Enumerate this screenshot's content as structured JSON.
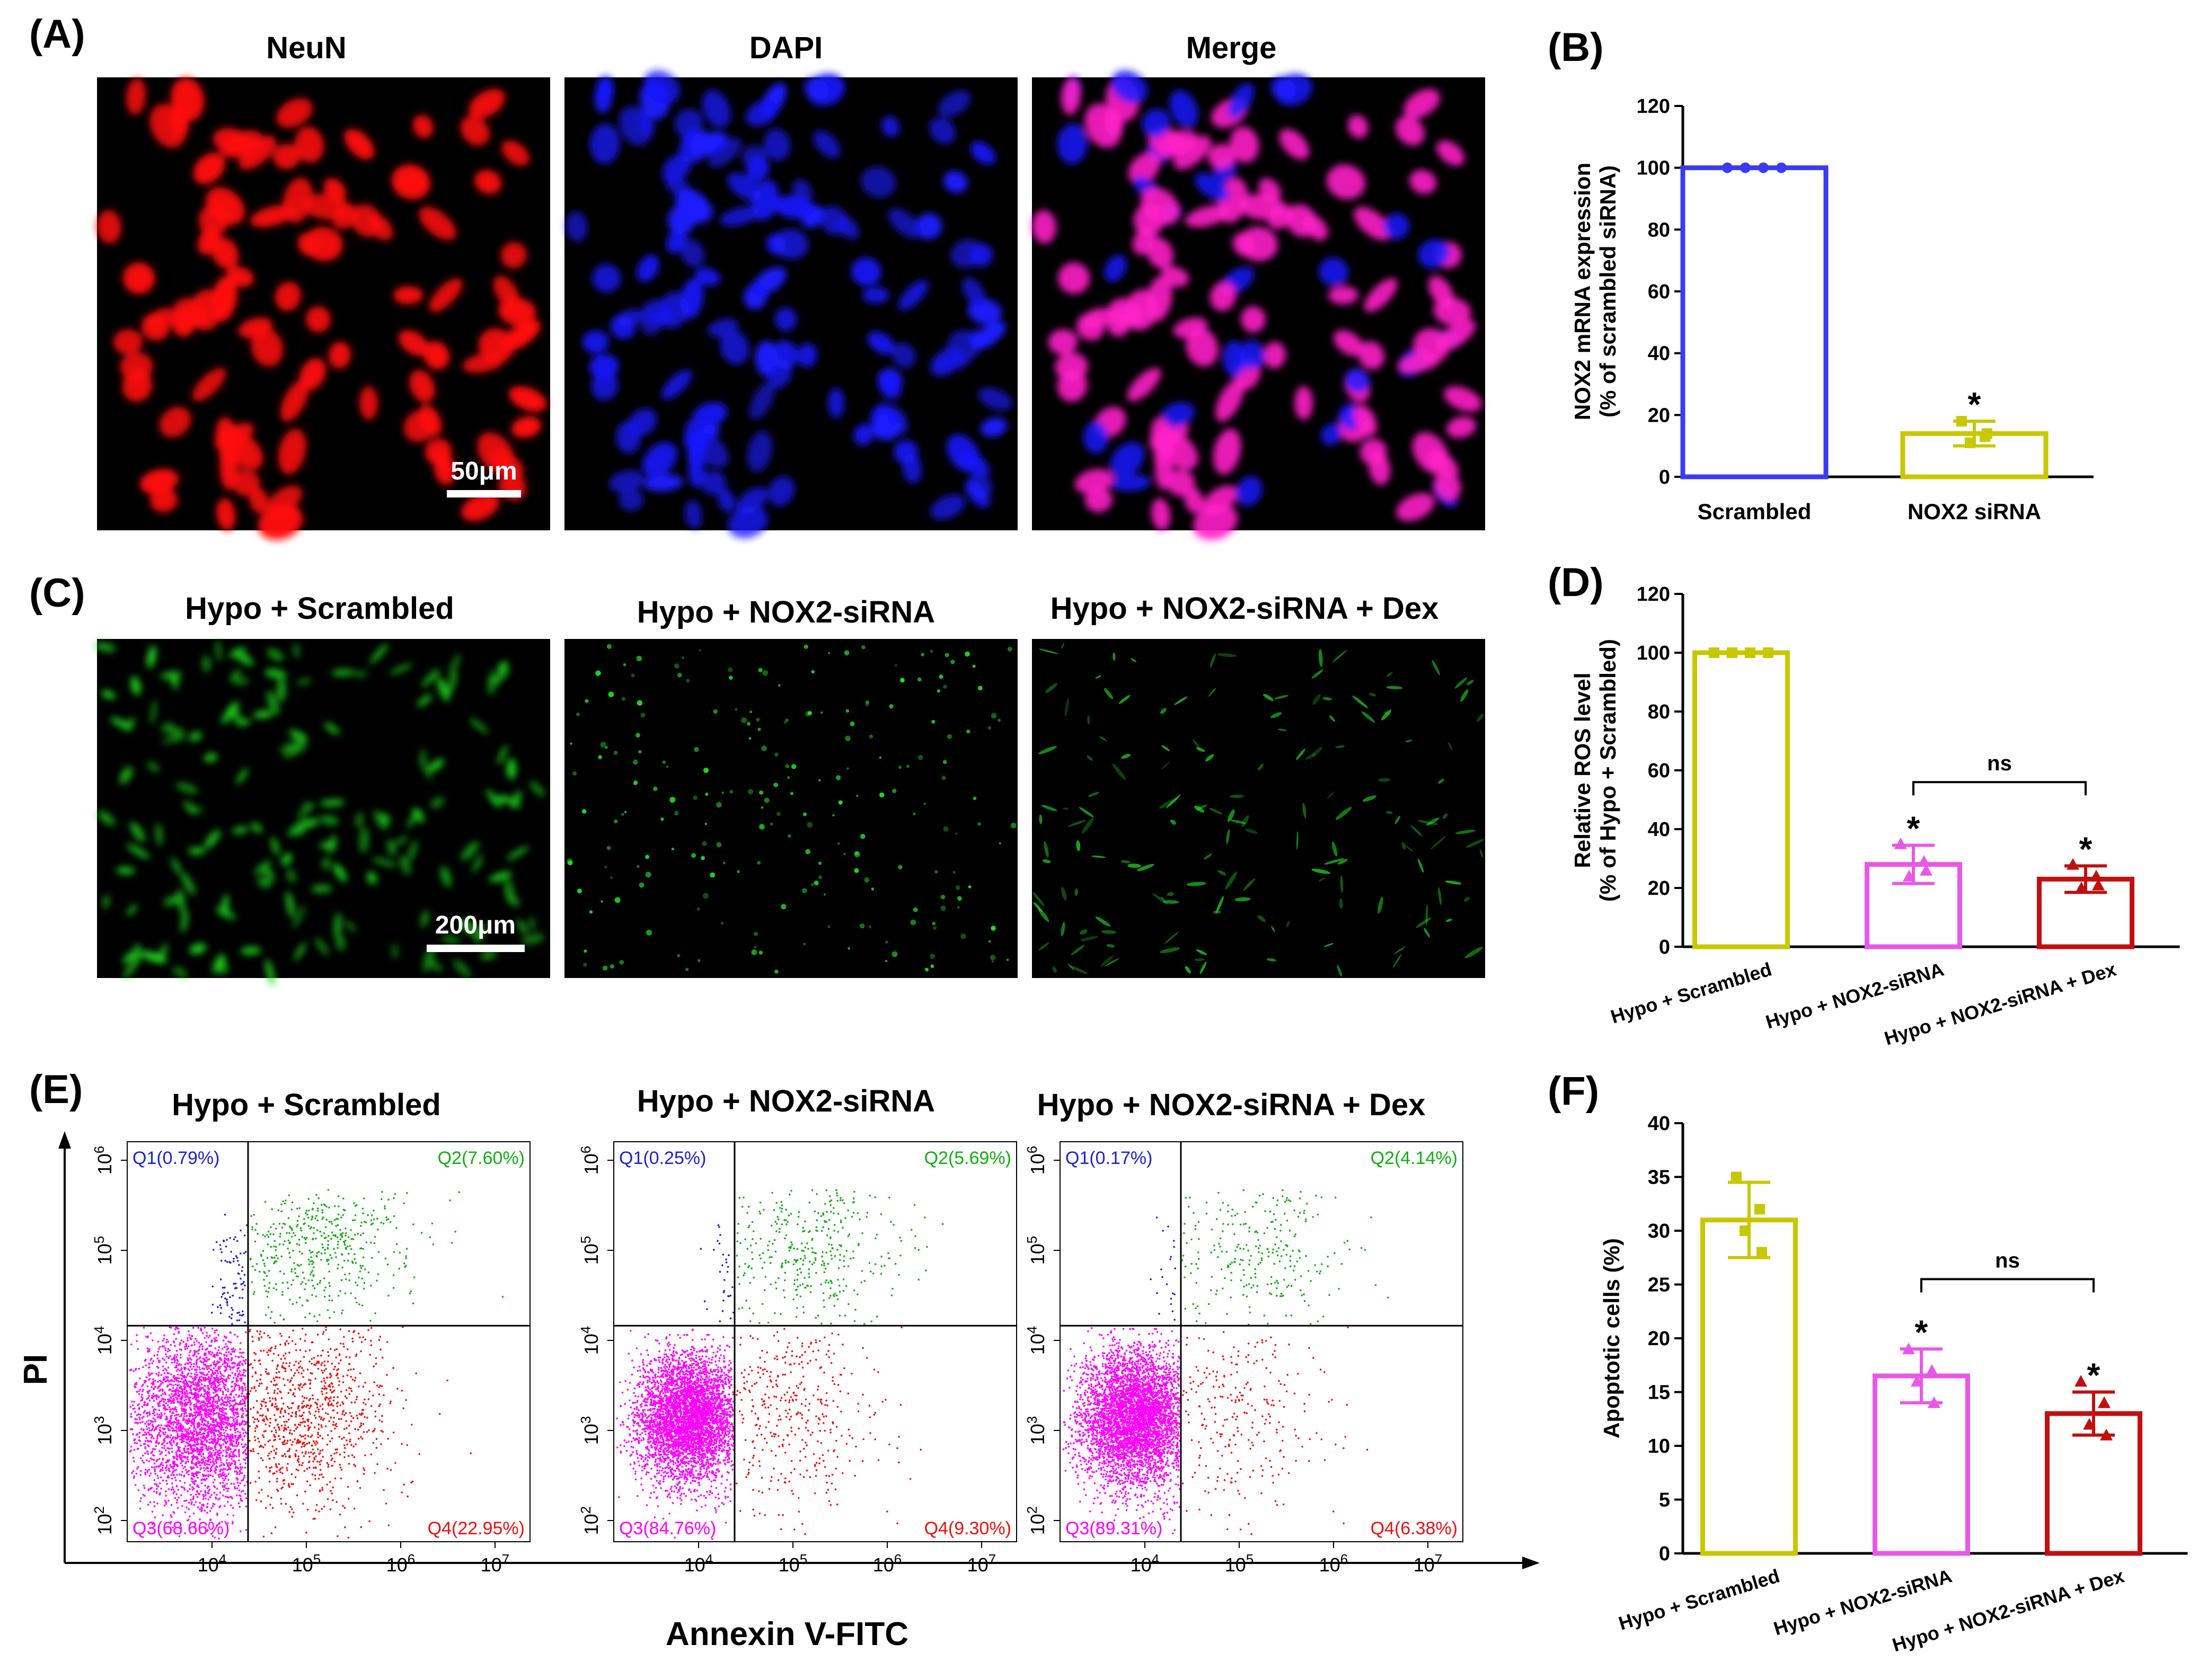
{
  "panel_A": {
    "label": "(A)",
    "titles": [
      "NeuN",
      "DAPI",
      "Merge"
    ],
    "scale_bar": "50μm",
    "colors": {
      "neun": "#ff1010",
      "dapi": "#1a1aff",
      "merge": "#ff20c8"
    }
  },
  "panel_C": {
    "label": "(C)",
    "titles": [
      "Hypo + Scrambled",
      "Hypo + NOX2-siRNA",
      "Hypo + NOX2-siRNA + Dex"
    ],
    "scale_bar": "200μm",
    "color": "#20e020"
  },
  "panel_E": {
    "label": "(E)",
    "titles": [
      "Hypo + Scrambled",
      "Hypo + NOX2-siRNA",
      "Hypo + NOX2-siRNA + Dex"
    ],
    "y_axis": "PI",
    "x_axis": "Annexin V-FITC",
    "y_ticks": [
      "10^2",
      "10^3",
      "10^4",
      "10^5",
      "10^6"
    ],
    "x_ticks": [
      "10^4",
      "10^5",
      "10^6",
      "10^7"
    ],
    "colors": {
      "q1": "#2020d0",
      "q2": "#10b010",
      "q3": "#ff00ff",
      "q4": "#ee1010"
    },
    "plots": [
      {
        "q1": "Q1(0.79%)",
        "q2": "Q2(7.60%)",
        "q3": "Q3(68.66%)",
        "q4": "Q4(22.95%)",
        "pct": {
          "q1": 0.79,
          "q2": 7.6,
          "q3": 68.66,
          "q4": 22.95
        }
      },
      {
        "q1": "Q1(0.25%)",
        "q2": "Q2(5.69%)",
        "q3": "Q3(84.76%)",
        "q4": "Q4(9.30%)",
        "pct": {
          "q1": 0.25,
          "q2": 5.69,
          "q3": 84.76,
          "q4": 9.3
        }
      },
      {
        "q1": "Q1(0.17%)",
        "q2": "Q2(4.14%)",
        "q3": "Q3(89.31%)",
        "q4": "Q4(6.38%)",
        "pct": {
          "q1": 0.17,
          "q2": 4.14,
          "q3": 89.31,
          "q4": 6.38
        }
      }
    ]
  },
  "chart_data": [
    {
      "panel": "(B)",
      "type": "bar",
      "categories": [
        "Scrambled",
        "NOX2 siRNA"
      ],
      "values": [
        100,
        14
      ],
      "error": [
        0,
        4
      ],
      "points": [
        [
          100,
          100,
          100,
          100
        ],
        [
          18,
          13,
          11,
          14
        ]
      ],
      "colors": [
        "#3b3bf5",
        "#c8c800"
      ],
      "ylabel": "NOX2 mRNA expression",
      "ylabel2": "(% of scrambled siRNA)",
      "ylim": [
        0,
        120
      ],
      "yticks": [
        0,
        20,
        40,
        60,
        80,
        100,
        120
      ],
      "significance": [
        "",
        "*"
      ],
      "brackets": []
    },
    {
      "panel": "(D)",
      "type": "bar",
      "categories": [
        "Hypo + Scrambled",
        "Hypo + NOX2-siRNA",
        "Hypo + NOX2-siRNA + Dex"
      ],
      "values": [
        100,
        28,
        23
      ],
      "error": [
        0,
        6.5,
        4.5
      ],
      "points": [
        [
          100,
          100,
          100,
          100
        ],
        [
          35,
          29,
          24,
          26
        ],
        [
          28,
          24,
          20,
          21
        ]
      ],
      "colors": [
        "#c8c800",
        "#e858e8",
        "#c01010"
      ],
      "ylabel": "Relative ROS level",
      "ylabel2": "(% of Hypo + Scrambled)",
      "ylim": [
        0,
        120
      ],
      "yticks": [
        0,
        20,
        40,
        60,
        80,
        100,
        120
      ],
      "significance": [
        "",
        "*",
        "*"
      ],
      "brackets": [
        {
          "from": 1,
          "to": 2,
          "y": 56,
          "label": "ns"
        }
      ]
    },
    {
      "panel": "(F)",
      "type": "bar",
      "categories": [
        "Hypo + Scrambled",
        "Hypo + NOX2-siRNA",
        "Hypo + NOX2-siRNA + Dex"
      ],
      "values": [
        31,
        16.5,
        13
      ],
      "error": [
        3.5,
        2.5,
        2
      ],
      "points": [
        [
          35,
          32,
          30,
          28
        ],
        [
          19,
          17,
          16,
          14
        ],
        [
          16,
          14,
          12,
          11
        ]
      ],
      "colors": [
        "#c8c800",
        "#e858e8",
        "#c01010"
      ],
      "ylabel": "Apoptotic cells (%)",
      "ylabel2": "",
      "ylim": [
        0,
        40
      ],
      "yticks": [
        0,
        5,
        10,
        15,
        20,
        25,
        30,
        35,
        40
      ],
      "significance": [
        "",
        "*",
        "*"
      ],
      "brackets": [
        {
          "from": 1,
          "to": 2,
          "y": 25.5,
          "label": "ns"
        }
      ]
    }
  ]
}
